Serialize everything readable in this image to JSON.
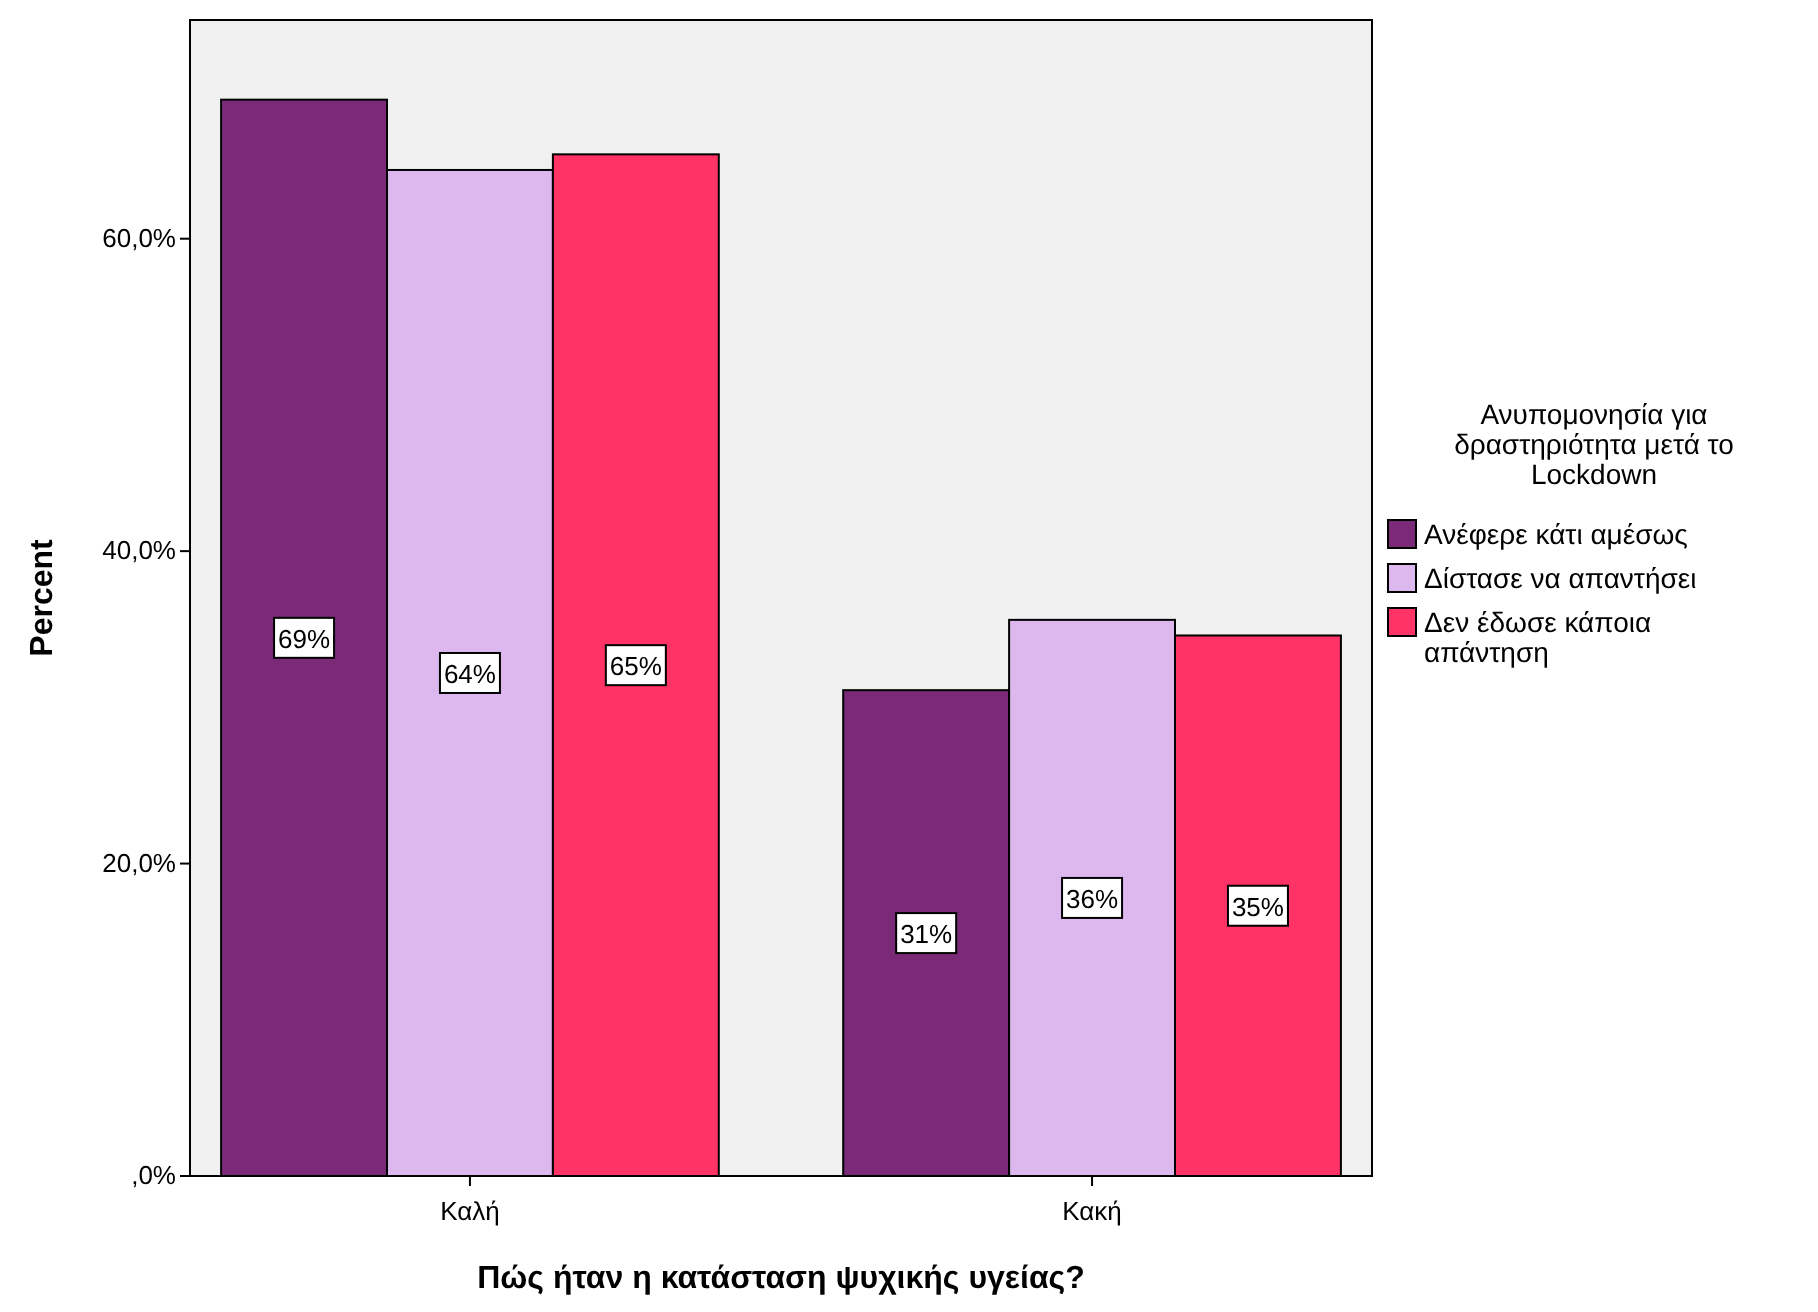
{
  "chart_data": {
    "type": "bar",
    "xlabel": "Πώς ήταν η κατάσταση ψυχικής υγείας?",
    "ylabel": "Percent",
    "legend_title": "Ανυπομονησία για δραστηριότητα μετά το Lockdown",
    "categories": [
      "Καλή",
      "Κακή"
    ],
    "series": [
      {
        "name": "Ανέφερε κάτι αμέσως",
        "color": "#7b2a78",
        "values": [
          68.9,
          31.1
        ],
        "value_labels": [
          "69%",
          "31%"
        ]
      },
      {
        "name": "Δίστασε να απαντήσει",
        "color": "#dcb8ee",
        "values": [
          64.4,
          35.6
        ],
        "value_labels": [
          "64%",
          "36%"
        ]
      },
      {
        "name": "Δεν έδωσε κάποια απάντηση",
        "color": "#ff3366",
        "values": [
          65.4,
          34.6
        ],
        "value_labels": [
          "65%",
          "35%"
        ]
      }
    ],
    "ylim": [
      0,
      74
    ],
    "yticks": [
      {
        "value": 0,
        "label": ",0%"
      },
      {
        "value": 20,
        "label": "20,0%"
      },
      {
        "value": 40,
        "label": "40,0%"
      },
      {
        "value": 60,
        "label": "60,0%"
      }
    ],
    "grid": false,
    "legend": "right"
  }
}
